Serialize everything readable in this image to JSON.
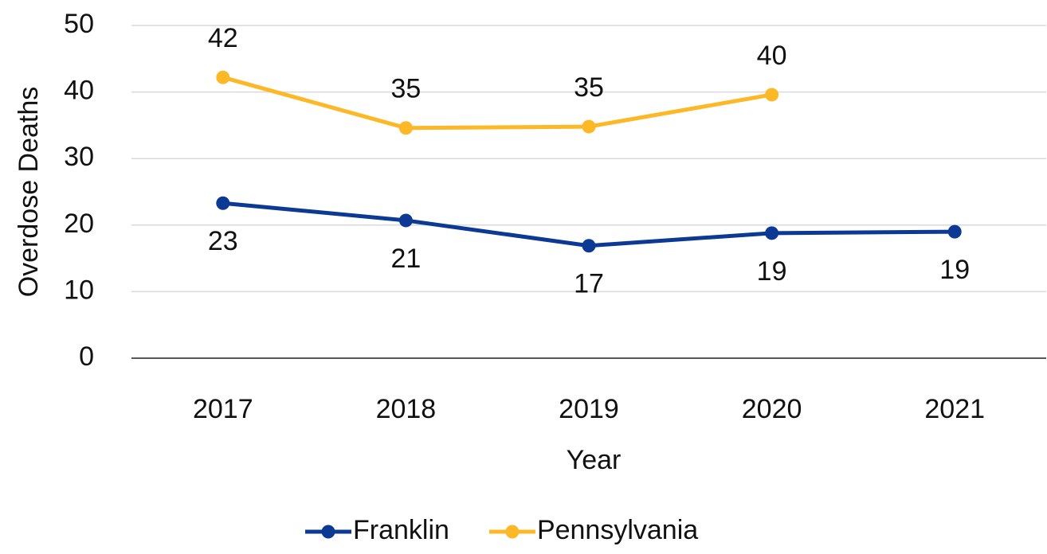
{
  "chart_data": {
    "type": "line",
    "x_label": "Year",
    "y_label": "Overdose Deaths",
    "categories": [
      "2017",
      "2018",
      "2019",
      "2020",
      "2021"
    ],
    "series": [
      {
        "name": "Franklin",
        "color": "#0b3994",
        "values": [
          23.3,
          20.7,
          16.9,
          18.8,
          19.0
        ],
        "value_labels": [
          "23",
          "21",
          "17",
          "19",
          "19"
        ],
        "label_position": "below"
      },
      {
        "name": "Pennsylvania",
        "color": "#fdb827",
        "values": [
          42.2,
          34.6,
          34.8,
          39.6,
          null
        ],
        "value_labels": [
          "42",
          "35",
          "35",
          "40",
          null
        ],
        "label_position": "above"
      }
    ],
    "ylim": [
      0,
      50
    ],
    "yticks": [
      0,
      10,
      20,
      30,
      40,
      50
    ],
    "grid": true,
    "legend": "bottom"
  }
}
